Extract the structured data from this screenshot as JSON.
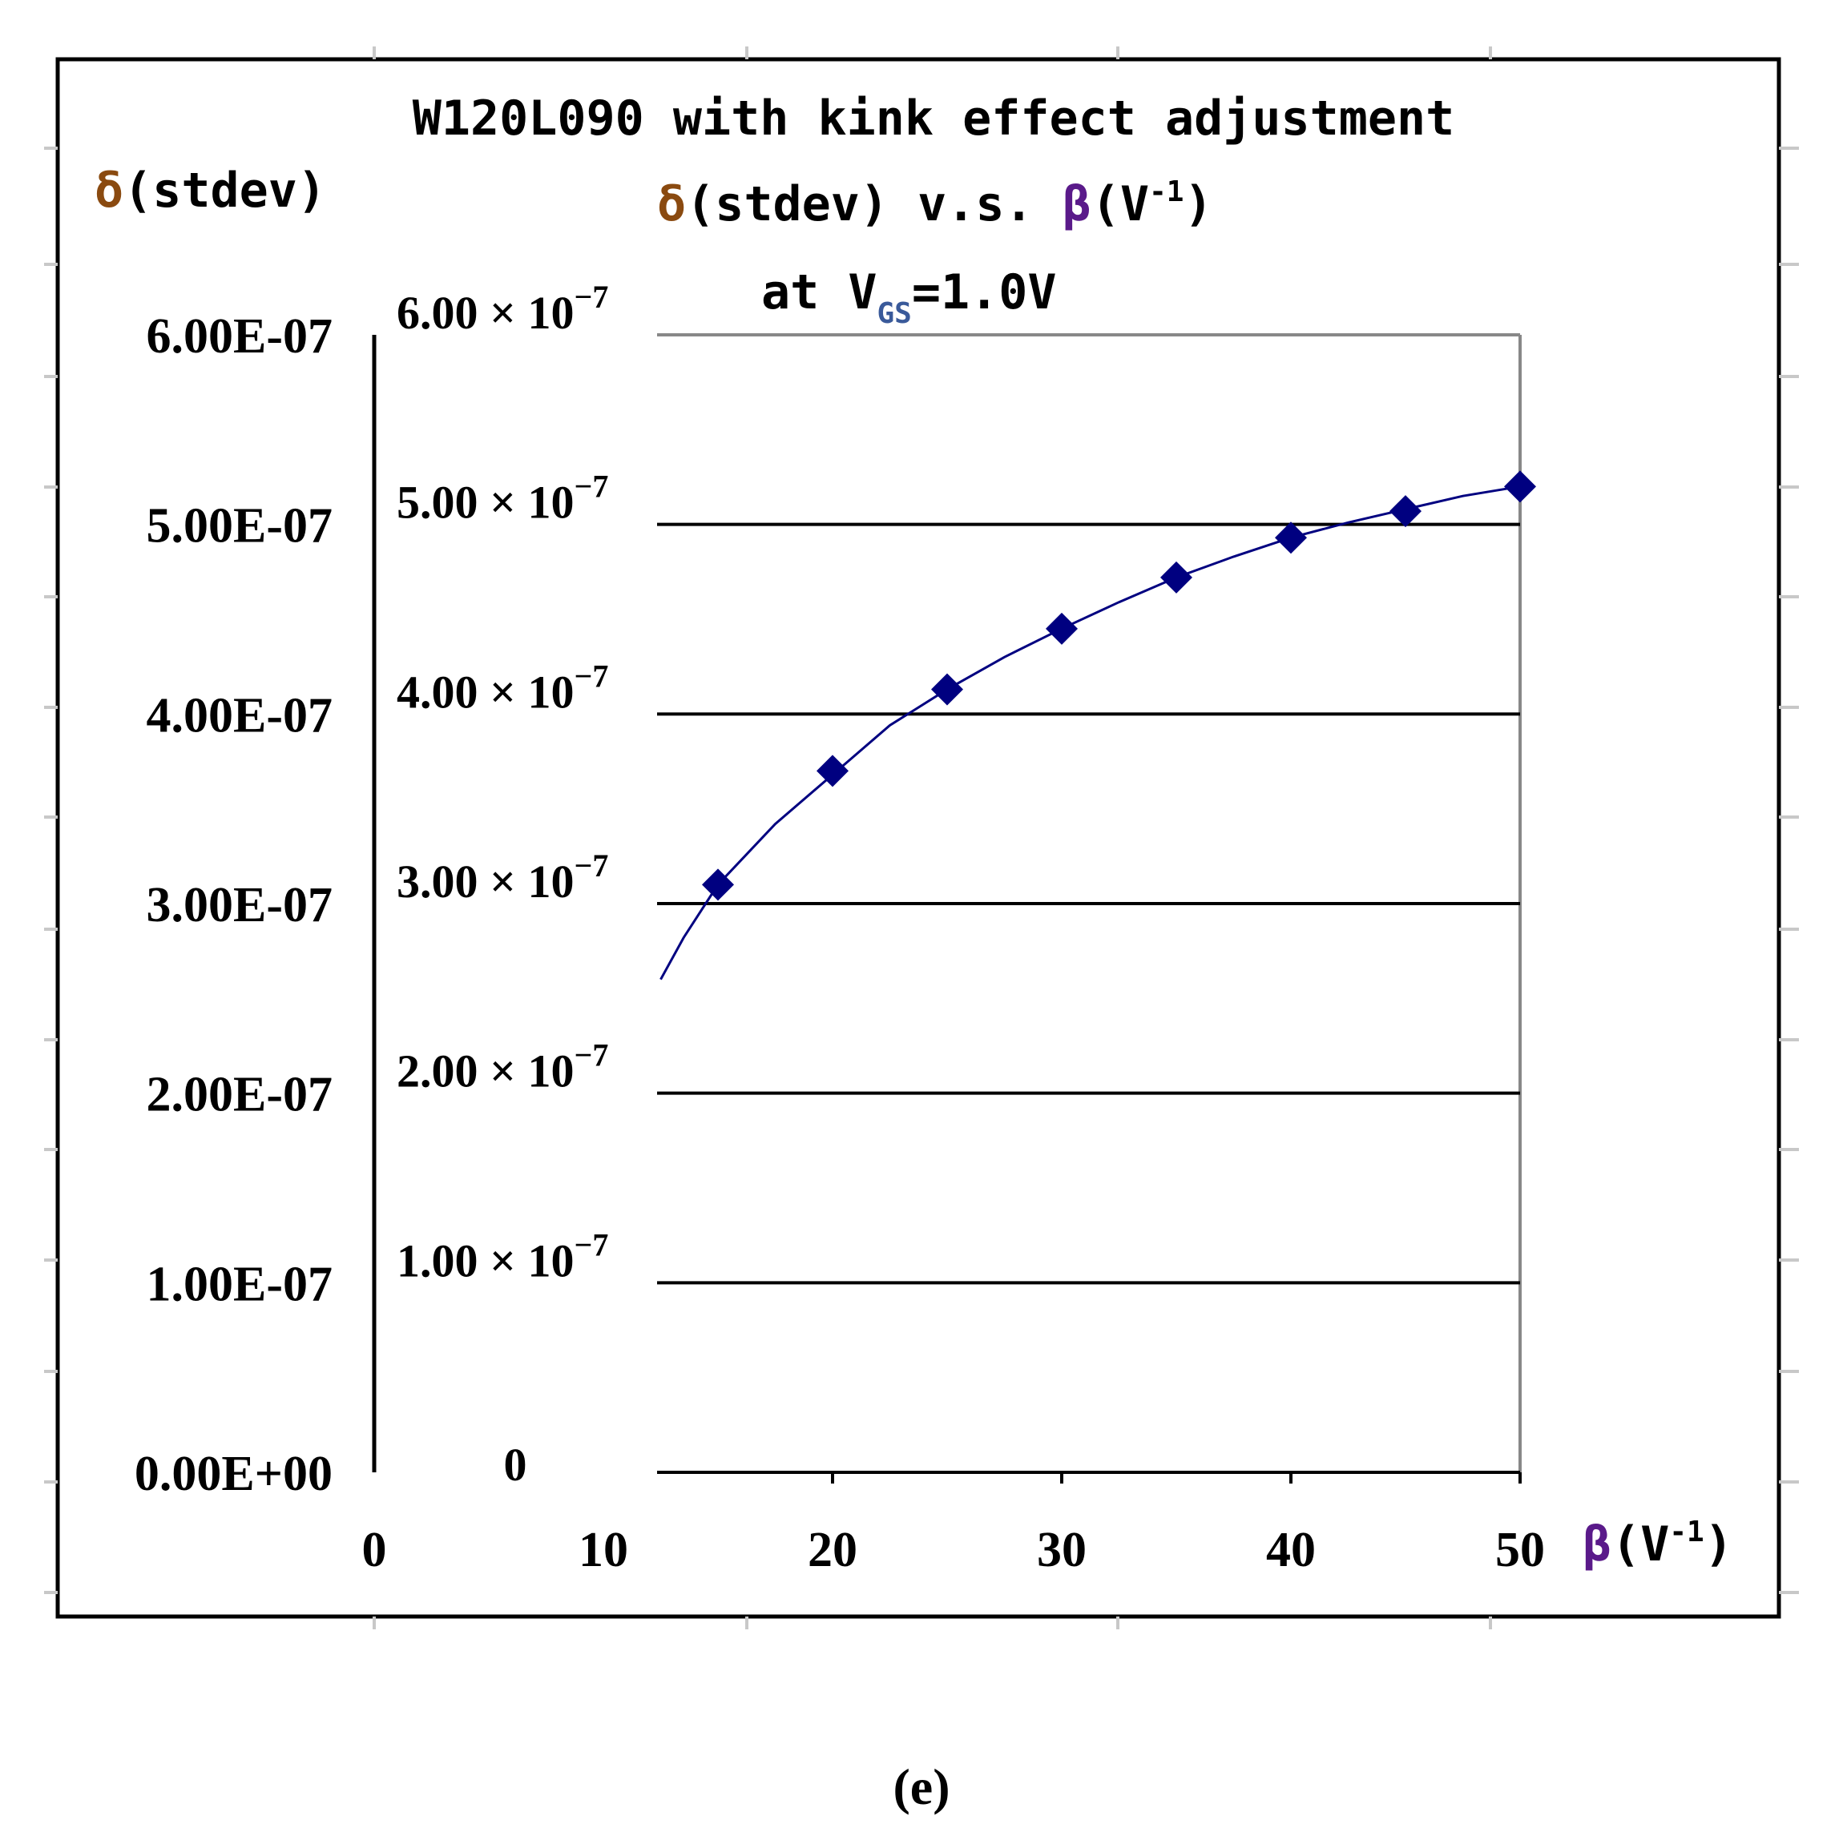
{
  "chart_data": {
    "type": "scatter",
    "title": "W120L090 with kink effect adjustment",
    "subtitle": {
      "delta_symbol": "δ",
      "line1_mid": "(stdev) v.s. ",
      "beta_symbol": "β",
      "line1_end_a": "(V",
      "line1_sup": "-1",
      "line1_end_b": ")",
      "line2_a": "at V",
      "line2_sub": "GS",
      "line2_b": "=1.0V"
    },
    "ylabel": {
      "delta_symbol": "δ",
      "text": "(stdev)"
    },
    "xlabel": {
      "beta_symbol": "β",
      "text_a": "(V",
      "sup": "-1",
      "text_b": ")"
    },
    "left_y_ticks": [
      "6.00E-07",
      "5.00E-07",
      "4.00E-07",
      "3.00E-07",
      "2.00E-07",
      "1.00E-07",
      "0.00E+00"
    ],
    "inner_y_ticks": [
      {
        "mantissa": "6.00 × 10",
        "exp": "−7"
      },
      {
        "mantissa": "5.00 × 10",
        "exp": "−7"
      },
      {
        "mantissa": "4.00 × 10",
        "exp": "−7"
      },
      {
        "mantissa": "3.00 × 10",
        "exp": "−7"
      },
      {
        "mantissa": "2.00 × 10",
        "exp": "−7"
      },
      {
        "mantissa": "1.00 × 10",
        "exp": "−7"
      },
      {
        "mantissa": "0",
        "exp": ""
      }
    ],
    "x_ticks": [
      "0",
      "10",
      "20",
      "30",
      "40",
      "50"
    ],
    "xlim": [
      0,
      50
    ],
    "ylim": [
      0,
      6e-07
    ],
    "grid": true,
    "series": [
      {
        "x": [
          15,
          20,
          25,
          30,
          35,
          40,
          45,
          50
        ],
        "y": [
          3.1e-07,
          3.7e-07,
          4.13e-07,
          4.45e-07,
          4.72e-07,
          4.93e-07,
          5.07e-07,
          5.2e-07
        ],
        "color": "#000080",
        "marker": "diamond"
      }
    ],
    "trendline": {
      "x": [
        12.5,
        13.5,
        15,
        17.5,
        20,
        22.5,
        25,
        27.5,
        30,
        32.5,
        35,
        37.5,
        40,
        42.5,
        45,
        47.5,
        50
      ],
      "y": [
        2.6e-07,
        2.82e-07,
        3.1e-07,
        3.42e-07,
        3.68e-07,
        3.94e-07,
        4.13e-07,
        4.3e-07,
        4.45e-07,
        4.59e-07,
        4.72e-07,
        4.83e-07,
        4.93e-07,
        5.01e-07,
        5.08e-07,
        5.15e-07,
        5.2e-07
      ],
      "color": "#000080"
    }
  },
  "caption": "(e)"
}
